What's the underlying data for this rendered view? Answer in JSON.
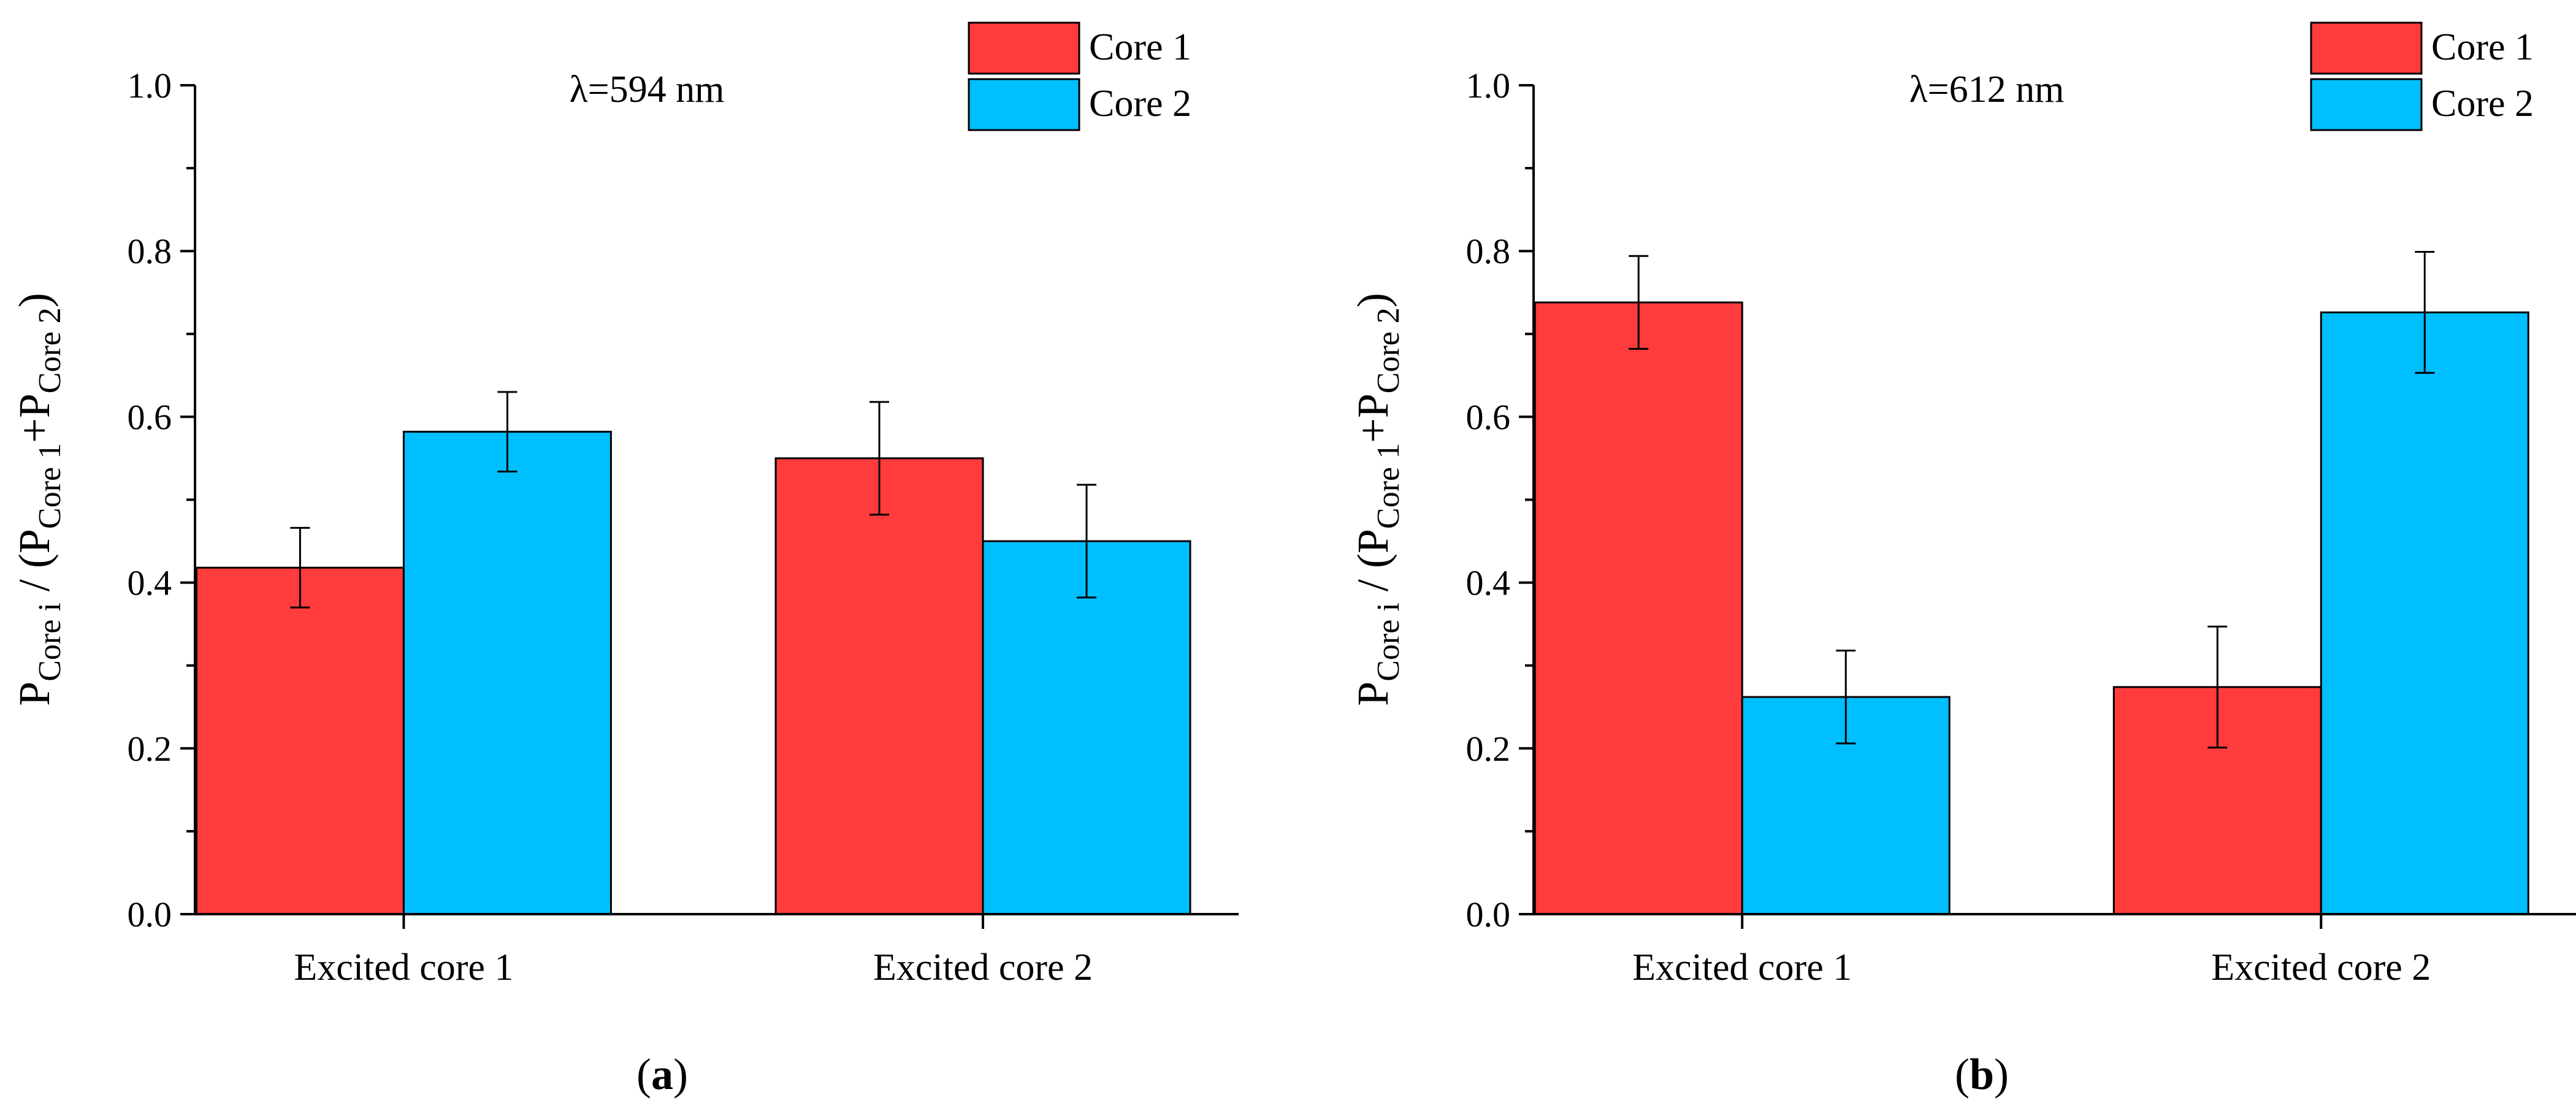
{
  "colors": {
    "core1": "#ff3b3b",
    "core2": "#00bfff",
    "axis": "#000000"
  },
  "chart_data": [
    {
      "type": "bar",
      "panel_label": "a",
      "annotation": "λ=594 nm",
      "categories": [
        "Excited core 1",
        "Excited core 2"
      ],
      "series": [
        {
          "name": "Core 1",
          "values": [
            0.418,
            0.55
          ],
          "errors": [
            0.048,
            0.068
          ]
        },
        {
          "name": "Core 2",
          "values": [
            0.582,
            0.45
          ],
          "errors": [
            0.048,
            0.068
          ]
        }
      ],
      "ylabel": {
        "P": "P",
        "sub_i": "Core i",
        "mid": " / (P",
        "sub_1": "Core 1",
        "plus": "+P",
        "sub_2": "Core 2",
        "close": ")"
      },
      "yticks": [
        "0.0",
        "0.2",
        "0.4",
        "0.6",
        "0.8",
        "1.0"
      ],
      "ylim": [
        0,
        1.0
      ],
      "legend": [
        "Core 1",
        "Core 2"
      ]
    },
    {
      "type": "bar",
      "panel_label": "b",
      "annotation": "λ=612 nm",
      "categories": [
        "Excited core 1",
        "Excited core 2"
      ],
      "series": [
        {
          "name": "Core 1",
          "values": [
            0.738,
            0.274
          ],
          "errors": [
            0.056,
            0.073
          ]
        },
        {
          "name": "Core 2",
          "values": [
            0.262,
            0.726
          ],
          "errors": [
            0.056,
            0.073
          ]
        }
      ],
      "ylabel": {
        "P": "P",
        "sub_i": "Core i",
        "mid": " / (P",
        "sub_1": "Core 1",
        "plus": "+P",
        "sub_2": "Core 2",
        "close": ")"
      },
      "yticks": [
        "0.0",
        "0.2",
        "0.4",
        "0.6",
        "0.8",
        "1.0"
      ],
      "ylim": [
        0,
        1.0
      ],
      "legend": [
        "Core 1",
        "Core 2"
      ]
    }
  ]
}
